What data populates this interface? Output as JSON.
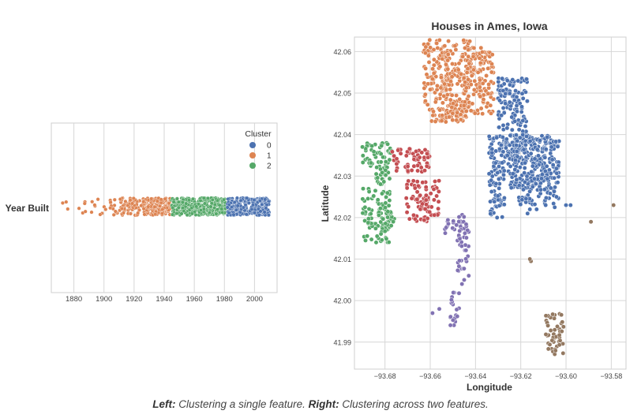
{
  "caption": {
    "left_label": "Left:",
    "left_text": "Clustering a single feature.",
    "right_label": "Right:",
    "right_text": "Clustering across two features."
  },
  "palette": {
    "cluster_0": "#4c72b0",
    "cluster_1": "#dd8452",
    "cluster_2": "#55a868",
    "cluster_3": "#c44e52",
    "cluster_4": "#8172b3",
    "cluster_5": "#937860",
    "grid": "#d6d6d6",
    "point_edge": "#ffffff"
  },
  "chart_data": [
    {
      "type": "scatter",
      "subtype": "strip",
      "title": "",
      "xlabel": "",
      "ylabel": "Year Built",
      "xlim": [
        1865,
        2015
      ],
      "xticks": [
        1880,
        1900,
        1920,
        1940,
        1960,
        1980,
        2000
      ],
      "grid": true,
      "legend": {
        "title": "Cluster",
        "position": "top-right",
        "entries": [
          "0",
          "1",
          "2"
        ]
      },
      "series": [
        {
          "name": "1",
          "cluster": 1,
          "x_range": [
            1872,
            1944
          ]
        },
        {
          "name": "2",
          "cluster": 2,
          "x_range": [
            1945,
            1981
          ]
        },
        {
          "name": "0",
          "cluster": 0,
          "x_range": [
            1982,
            2010
          ]
        }
      ]
    },
    {
      "type": "scatter",
      "title": "Houses in Ames, Iowa",
      "xlabel": "Longitude",
      "ylabel": "Latitude",
      "xlim": [
        -93.6935,
        -93.5735
      ],
      "ylim": [
        41.9835,
        42.0635
      ],
      "xticks": [
        -93.68,
        -93.66,
        -93.64,
        -93.62,
        -93.6,
        -93.58
      ],
      "yticks": [
        41.99,
        42.0,
        42.01,
        42.02,
        42.03,
        42.04,
        42.05,
        42.06
      ],
      "grid": true,
      "clusters": [
        {
          "cluster": 1,
          "regions": [
            {
              "lon": [
                -93.663,
                -93.652
              ],
              "lat": [
                42.046,
                42.063
              ]
            },
            {
              "lon": [
                -93.654,
                -93.642
              ],
              "lat": [
                42.044,
                42.063
              ]
            },
            {
              "lon": [
                -93.646,
                -93.632
              ],
              "lat": [
                42.045,
                42.061
              ]
            },
            {
              "lon": [
                -93.66,
                -93.644
              ],
              "lat": [
                42.043,
                42.047
              ]
            }
          ]
        },
        {
          "cluster": 0,
          "regions": [
            {
              "lon": [
                -93.63,
                -93.617
              ],
              "lat": [
                42.034,
                42.054
              ]
            },
            {
              "lon": [
                -93.634,
                -93.606
              ],
              "lat": [
                42.027,
                42.04
              ]
            },
            {
              "lon": [
                -93.623,
                -93.603
              ],
              "lat": [
                42.023,
                42.04
              ]
            },
            {
              "lon": [
                -93.634,
                -93.627
              ],
              "lat": [
                42.02,
                42.027
              ]
            }
          ],
          "extra_points": [
            [
              -93.613,
              42.022
            ],
            [
              -93.616,
              42.022
            ],
            [
              -93.617,
              42.021
            ],
            [
              -93.609,
              42.023
            ],
            [
              -93.605,
              42.0225
            ],
            [
              -93.6,
              42.023
            ],
            [
              -93.598,
              42.023
            ]
          ]
        },
        {
          "cluster": 2,
          "regions": [
            {
              "lon": [
                -93.69,
                -93.677
              ],
              "lat": [
                42.032,
                42.038
              ]
            },
            {
              "lon": [
                -93.684,
                -93.677
              ],
              "lat": [
                42.028,
                42.034
              ]
            },
            {
              "lon": [
                -93.69,
                -93.678
              ],
              "lat": [
                42.014,
                42.027
              ]
            },
            {
              "lon": [
                -93.68,
                -93.675
              ],
              "lat": [
                42.018,
                42.024
              ]
            }
          ]
        },
        {
          "cluster": 3,
          "regions": [
            {
              "lon": [
                -93.677,
                -93.66
              ],
              "lat": [
                42.031,
                42.037
              ]
            },
            {
              "lon": [
                -93.671,
                -93.656
              ],
              "lat": [
                42.019,
                42.029
              ]
            }
          ]
        },
        {
          "cluster": 4,
          "regions": [
            {
              "lon": [
                -93.654,
                -93.644
              ],
              "lat": [
                42.016,
                42.021
              ]
            },
            {
              "lon": [
                -93.648,
                -93.643
              ],
              "lat": [
                42.007,
                42.017
              ]
            },
            {
              "lon": [
                -93.653,
                -93.648
              ],
              "lat": [
                41.994,
                41.996
              ]
            },
            {
              "lon": [
                -93.651,
                -93.647
              ],
              "lat": [
                41.996,
                42.002
              ]
            }
          ],
          "extra_points": [
            [
              -93.656,
              41.998
            ],
            [
              -93.659,
              41.997
            ],
            [
              -93.645,
              42.005
            ],
            [
              -93.643,
              42.006
            ],
            [
              -93.646,
              42.004
            ]
          ]
        },
        {
          "cluster": 5,
          "regions": [
            {
              "lon": [
                -93.609,
                -93.601
              ],
              "lat": [
                41.987,
                41.997
              ]
            }
          ],
          "extra_points": [
            [
              -93.6155,
              42.0095
            ],
            [
              -93.616,
              42.01
            ],
            [
              -93.589,
              42.019
            ],
            [
              -93.579,
              42.023
            ]
          ]
        }
      ]
    }
  ]
}
